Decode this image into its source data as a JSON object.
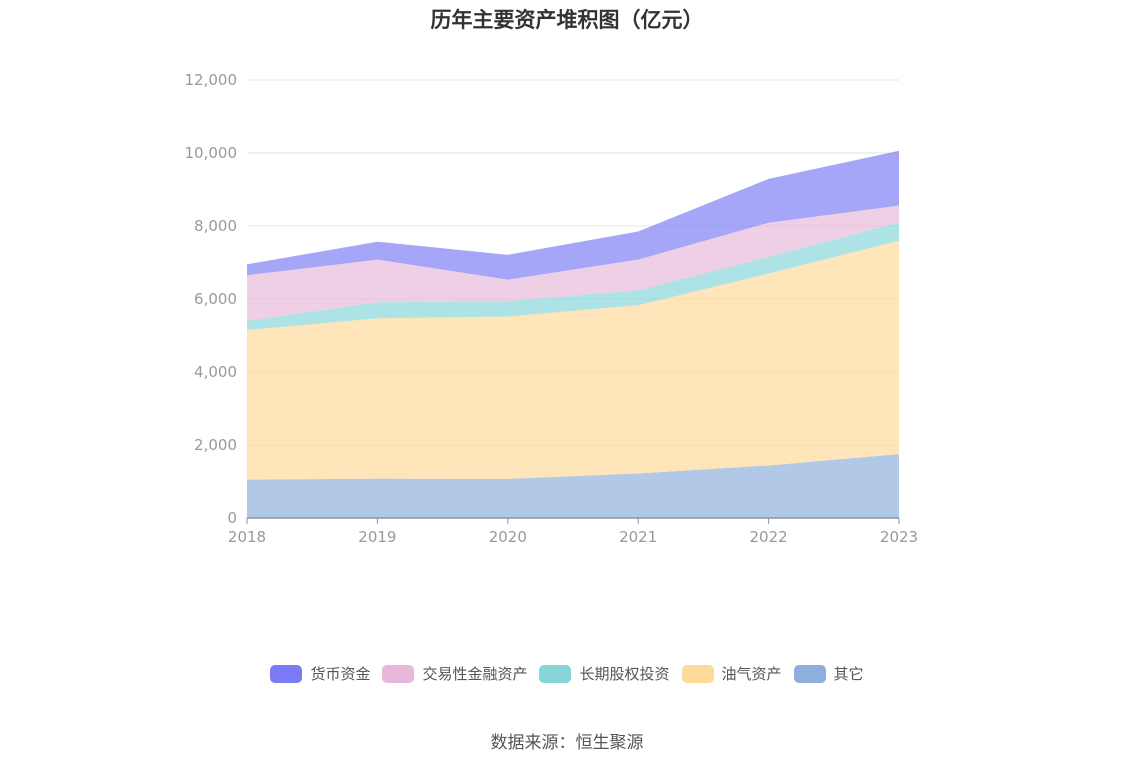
{
  "chart_data": {
    "type": "area",
    "stacked": true,
    "title": "历年主要资产堆积图（亿元）",
    "categories": [
      "2018",
      "2019",
      "2020",
      "2021",
      "2022",
      "2023"
    ],
    "y_ticks": [
      "0",
      "2,000",
      "4,000",
      "6,000",
      "8,000",
      "10,000",
      "12,000"
    ],
    "ylim": [
      0,
      12000
    ],
    "series": [
      {
        "name": "其它",
        "color": "#8eaedb",
        "values": [
          1050,
          1080,
          1070,
          1220,
          1440,
          1750
        ]
      },
      {
        "name": "油气资产",
        "color": "#fdd99a",
        "values": [
          4100,
          4390,
          4450,
          4610,
          5260,
          5850
        ]
      },
      {
        "name": "长期股权投资",
        "color": "#86d6d8",
        "values": [
          250,
          440,
          420,
          410,
          450,
          500
        ]
      },
      {
        "name": "交易性金融资产",
        "color": "#e8b8da",
        "values": [
          1250,
          1170,
          590,
          840,
          940,
          460
        ]
      },
      {
        "name": "货币资金",
        "color": "#7b7cf5",
        "values": [
          300,
          490,
          680,
          770,
          1200,
          1500
        ]
      }
    ],
    "legend": [
      "货币资金",
      "交易性金融资产",
      "长期股权投资",
      "油气资产",
      "其它"
    ],
    "legend_position": "bottom-center"
  },
  "source": "数据来源：恒生聚源"
}
